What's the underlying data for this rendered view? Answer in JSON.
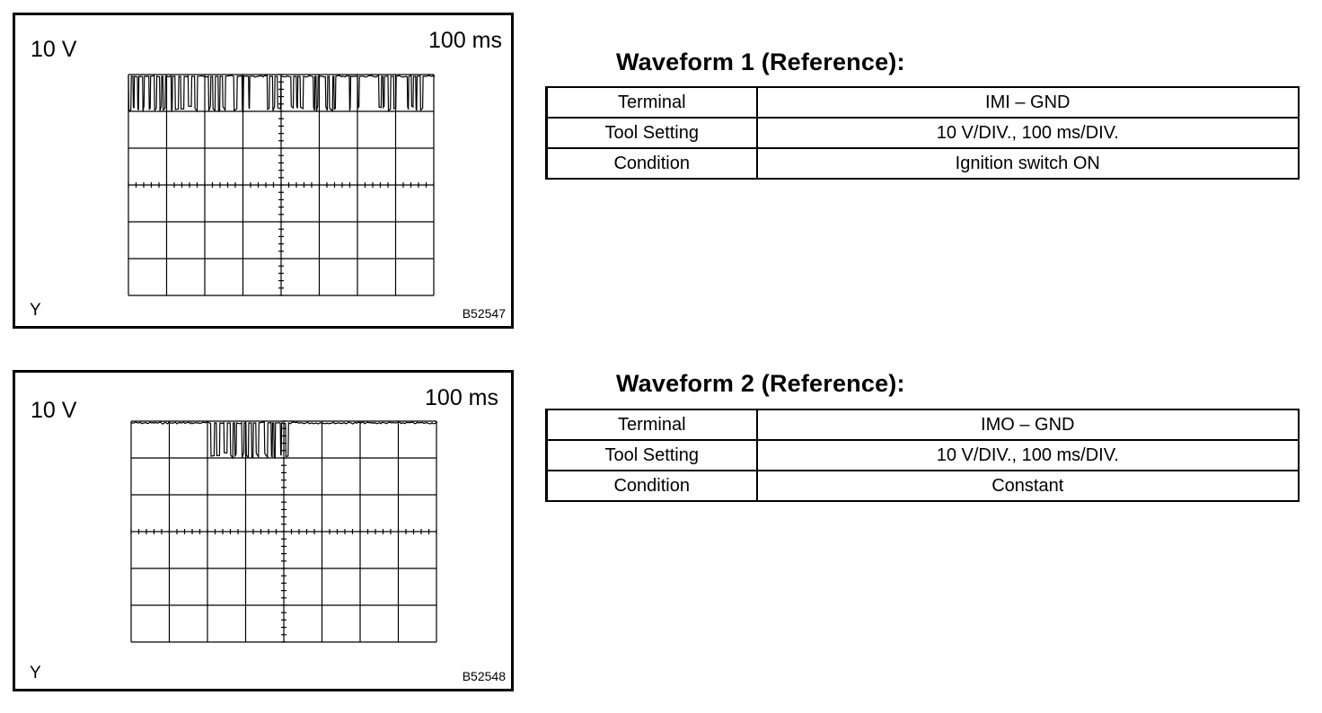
{
  "waveforms": [
    {
      "scope": {
        "volt_label": "10 V",
        "time_label": "100 ms",
        "y_label": "Y",
        "figure_code": "B52547"
      },
      "heading": "Waveform 1 (Reference):",
      "table": [
        {
          "key": "Terminal",
          "value": "IMI – GND"
        },
        {
          "key": "Tool Setting",
          "value": "10 V/DIV., 100 ms/DIV."
        },
        {
          "key": "Condition",
          "value": "Ignition switch ON"
        }
      ]
    },
    {
      "scope": {
        "volt_label": "10 V",
        "time_label": "100 ms",
        "y_label": "Y",
        "figure_code": "B52548"
      },
      "heading": "Waveform 2 (Reference):",
      "table": [
        {
          "key": "Terminal",
          "value": "IMO – GND"
        },
        {
          "key": "Tool Setting",
          "value": "10 V/DIV., 100 ms/DIV."
        },
        {
          "key": "Condition",
          "value": "Constant"
        }
      ]
    }
  ],
  "colors": {
    "line": "#000000",
    "background": "#ffffff"
  }
}
